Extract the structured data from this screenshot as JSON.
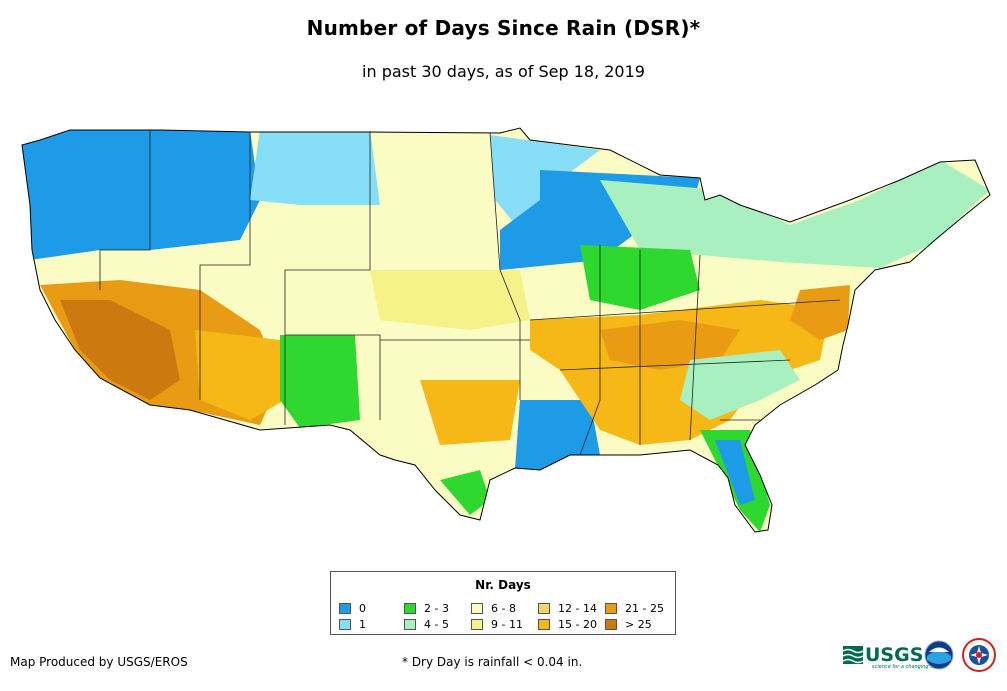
{
  "title": "Number of Days Since Rain (DSR)*",
  "subtitle": "in past 30 days, as of Sep 18, 2019",
  "legend": {
    "title": "Nr. Days",
    "items": [
      {
        "label": "0",
        "color": "#1e9be6"
      },
      {
        "label": "1",
        "color": "#87def7"
      },
      {
        "label": "2 - 3",
        "color": "#2ed82e"
      },
      {
        "label": "4 - 5",
        "color": "#a8f0c0"
      },
      {
        "label": "6 - 8",
        "color": "#fbfbc4"
      },
      {
        "label": "9 - 11",
        "color": "#f5f28a"
      },
      {
        "label": "12 - 14",
        "color": "#f2d66a"
      },
      {
        "label": "15 - 20",
        "color": "#f5b816"
      },
      {
        "label": "21 - 25",
        "color": "#e99c13"
      },
      {
        "label": "> 25",
        "color": "#cc7a10"
      }
    ]
  },
  "footer": {
    "credit": "Map Produced by USGS/EROS",
    "note": "* Dry Day is rainfall < 0.04 in."
  },
  "logos": {
    "usgs": "USGS",
    "usgs_tagline": "science for a changing world",
    "noaa": "noaa-logo-icon",
    "nws": "nws-logo-icon"
  }
}
